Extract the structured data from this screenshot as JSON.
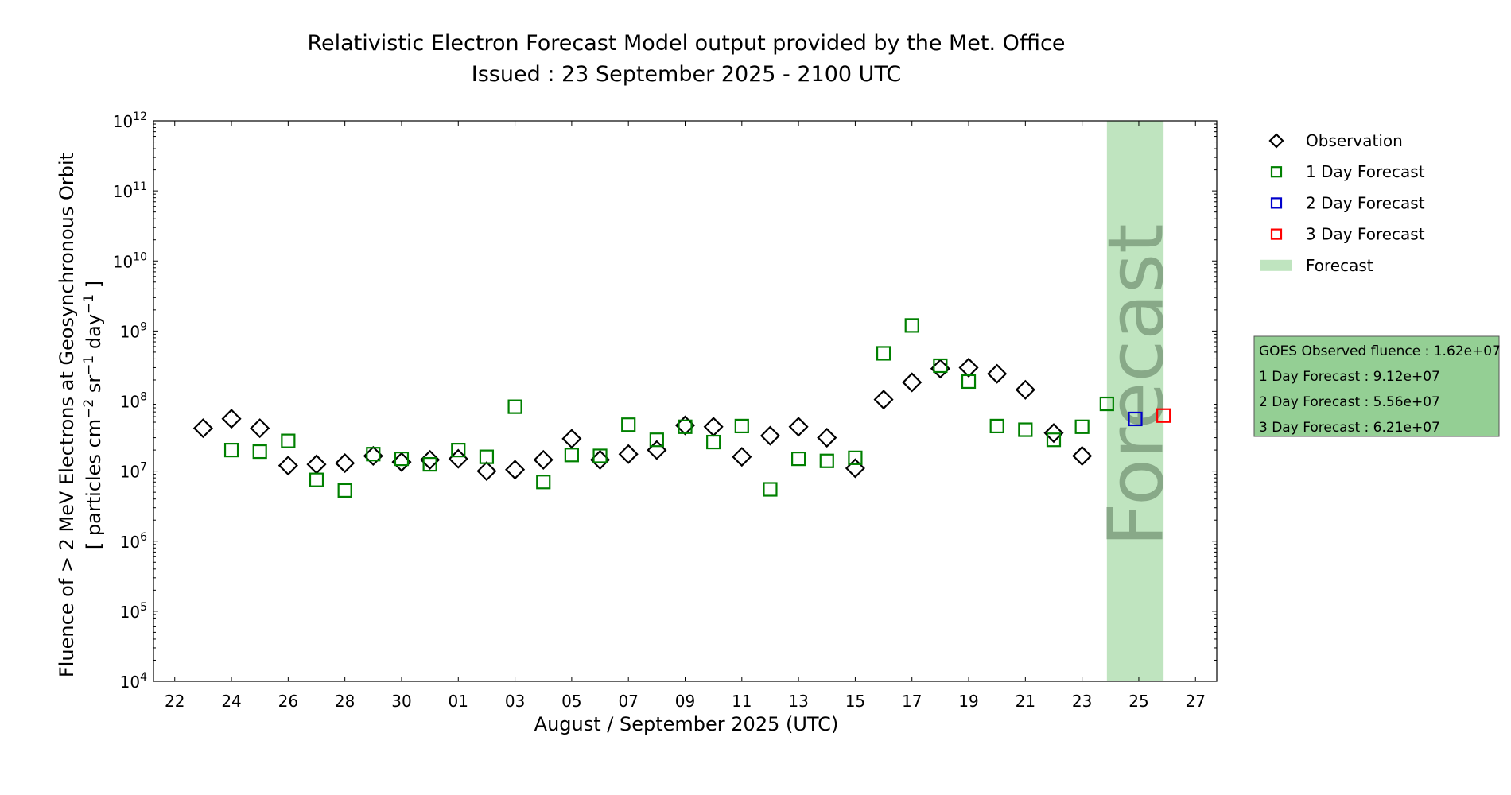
{
  "chart_data": {
    "type": "scatter",
    "title": "Relativistic Electron Forecast Model output provided by the Met. Office",
    "subtitle": "Issued : 23 September 2025 - 2100 UTC",
    "xlabel": "August / September 2025 (UTC)",
    "ylabel_line1": "Fluence of > 2 MeV Electrons at Geosynchronous Orbit",
    "ylabel_line2_parts": [
      "[ particles cm",
      "−2",
      " sr",
      "−1",
      " day",
      "−1",
      " ]"
    ],
    "y_scale": "log",
    "ylim": [
      10000,
      1000000000000
    ],
    "y_ticks": [
      {
        "value": 10000,
        "base": "10",
        "exp": "4"
      },
      {
        "value": 100000,
        "base": "10",
        "exp": "5"
      },
      {
        "value": 1000000,
        "base": "10",
        "exp": "6"
      },
      {
        "value": 10000000,
        "base": "10",
        "exp": "7"
      },
      {
        "value": 100000000,
        "base": "10",
        "exp": "8"
      },
      {
        "value": 1000000000,
        "base": "10",
        "exp": "9"
      },
      {
        "value": 10000000000,
        "base": "10",
        "exp": "10"
      },
      {
        "value": 100000000000,
        "base": "10",
        "exp": "11"
      },
      {
        "value": 1000000000000,
        "base": "10",
        "exp": "12"
      }
    ],
    "xlim": [
      "2025-08-21T06:00",
      "2025-09-27T18:00"
    ],
    "x_ticks": [
      {
        "date": "2025-08-22",
        "label": "22"
      },
      {
        "date": "2025-08-24",
        "label": "24"
      },
      {
        "date": "2025-08-26",
        "label": "26"
      },
      {
        "date": "2025-08-28",
        "label": "28"
      },
      {
        "date": "2025-08-30",
        "label": "30"
      },
      {
        "date": "2025-09-01",
        "label": "01"
      },
      {
        "date": "2025-09-03",
        "label": "03"
      },
      {
        "date": "2025-09-05",
        "label": "05"
      },
      {
        "date": "2025-09-07",
        "label": "07"
      },
      {
        "date": "2025-09-09",
        "label": "09"
      },
      {
        "date": "2025-09-11",
        "label": "11"
      },
      {
        "date": "2025-09-13",
        "label": "13"
      },
      {
        "date": "2025-09-15",
        "label": "15"
      },
      {
        "date": "2025-09-17",
        "label": "17"
      },
      {
        "date": "2025-09-19",
        "label": "19"
      },
      {
        "date": "2025-09-21",
        "label": "21"
      },
      {
        "date": "2025-09-23",
        "label": "23"
      },
      {
        "date": "2025-09-25",
        "label": "25"
      },
      {
        "date": "2025-09-27",
        "label": "27"
      }
    ],
    "forecast_region": {
      "start": "2025-09-23T21:00",
      "end": "2025-09-25T21:00",
      "color": "#bfe4bf",
      "label": "Forecast"
    },
    "series": [
      {
        "name": "Observation",
        "marker": "diamond",
        "color": "#000000",
        "points": [
          {
            "x": "2025-08-23",
            "y": 41000000
          },
          {
            "x": "2025-08-24",
            "y": 56000000
          },
          {
            "x": "2025-08-25",
            "y": 41000000
          },
          {
            "x": "2025-08-26",
            "y": 12000000
          },
          {
            "x": "2025-08-27",
            "y": 12500000
          },
          {
            "x": "2025-08-28",
            "y": 13000000
          },
          {
            "x": "2025-08-29",
            "y": 16500000
          },
          {
            "x": "2025-08-30",
            "y": 13500000
          },
          {
            "x": "2025-08-31",
            "y": 14500000
          },
          {
            "x": "2025-09-01",
            "y": 15000000
          },
          {
            "x": "2025-09-02",
            "y": 10000000
          },
          {
            "x": "2025-09-03",
            "y": 10500000
          },
          {
            "x": "2025-09-04",
            "y": 14500000
          },
          {
            "x": "2025-09-05",
            "y": 29000000
          },
          {
            "x": "2025-09-06",
            "y": 14500000
          },
          {
            "x": "2025-09-07",
            "y": 17500000
          },
          {
            "x": "2025-09-08",
            "y": 20000000
          },
          {
            "x": "2025-09-09",
            "y": 45000000
          },
          {
            "x": "2025-09-10",
            "y": 43000000
          },
          {
            "x": "2025-09-11",
            "y": 16000000
          },
          {
            "x": "2025-09-12",
            "y": 32000000
          },
          {
            "x": "2025-09-13",
            "y": 43000000
          },
          {
            "x": "2025-09-14",
            "y": 30000000
          },
          {
            "x": "2025-09-15",
            "y": 11000000
          },
          {
            "x": "2025-09-16",
            "y": 105000000
          },
          {
            "x": "2025-09-17",
            "y": 185000000
          },
          {
            "x": "2025-09-18",
            "y": 290000000
          },
          {
            "x": "2025-09-19",
            "y": 300000000
          },
          {
            "x": "2025-09-20",
            "y": 245000000
          },
          {
            "x": "2025-09-21",
            "y": 145000000
          },
          {
            "x": "2025-09-22",
            "y": 35000000
          },
          {
            "x": "2025-09-23",
            "y": 16500000
          }
        ]
      },
      {
        "name": "1 Day Forecast",
        "marker": "square",
        "color": "#008000",
        "points": [
          {
            "x": "2025-08-24",
            "y": 20000000
          },
          {
            "x": "2025-08-25",
            "y": 19000000
          },
          {
            "x": "2025-08-26",
            "y": 27000000
          },
          {
            "x": "2025-08-27",
            "y": 7500000
          },
          {
            "x": "2025-08-28",
            "y": 5300000
          },
          {
            "x": "2025-08-29",
            "y": 17500000
          },
          {
            "x": "2025-08-30",
            "y": 15000000
          },
          {
            "x": "2025-08-31",
            "y": 12500000
          },
          {
            "x": "2025-09-01",
            "y": 20000000
          },
          {
            "x": "2025-09-02",
            "y": 16000000
          },
          {
            "x": "2025-09-03",
            "y": 83000000
          },
          {
            "x": "2025-09-04",
            "y": 7000000
          },
          {
            "x": "2025-09-05",
            "y": 17000000
          },
          {
            "x": "2025-09-06",
            "y": 16500000
          },
          {
            "x": "2025-09-07",
            "y": 46000000
          },
          {
            "x": "2025-09-08",
            "y": 28000000
          },
          {
            "x": "2025-09-09",
            "y": 43000000
          },
          {
            "x": "2025-09-10",
            "y": 26000000
          },
          {
            "x": "2025-09-11",
            "y": 44000000
          },
          {
            "x": "2025-09-12",
            "y": 5500000
          },
          {
            "x": "2025-09-13",
            "y": 15000000
          },
          {
            "x": "2025-09-14",
            "y": 14000000
          },
          {
            "x": "2025-09-15",
            "y": 15500000
          },
          {
            "x": "2025-09-16",
            "y": 480000000
          },
          {
            "x": "2025-09-17",
            "y": 1200000000
          },
          {
            "x": "2025-09-18",
            "y": 320000000
          },
          {
            "x": "2025-09-19",
            "y": 190000000
          },
          {
            "x": "2025-09-20",
            "y": 44000000
          },
          {
            "x": "2025-09-21",
            "y": 39000000
          },
          {
            "x": "2025-09-22",
            "y": 28000000
          },
          {
            "x": "2025-09-23",
            "y": 43000000
          },
          {
            "x": "2025-09-23T21:00",
            "y": 91200000
          }
        ]
      },
      {
        "name": "2 Day Forecast",
        "marker": "square",
        "color": "#0000cc",
        "points": [
          {
            "x": "2025-09-24T21:00",
            "y": 55600000
          }
        ]
      },
      {
        "name": "3 Day Forecast",
        "marker": "square",
        "color": "#ff0000",
        "points": [
          {
            "x": "2025-09-25T21:00",
            "y": 62100000
          }
        ]
      }
    ],
    "legend": {
      "placement": "outside-right",
      "entries": [
        {
          "label": "Observation",
          "marker": "diamond",
          "color": "#000000"
        },
        {
          "label": "1 Day Forecast",
          "marker": "square",
          "color": "#008000"
        },
        {
          "label": "2 Day Forecast",
          "marker": "square",
          "color": "#0000cc"
        },
        {
          "label": "3 Day Forecast",
          "marker": "square",
          "color": "#ff0000"
        },
        {
          "label": "Forecast",
          "marker": "patch",
          "color": "#bfe4bf"
        }
      ]
    },
    "info_box": {
      "background": "#94cf94",
      "lines": [
        "GOES Observed fluence : 1.62e+07",
        "1 Day Forecast : 9.12e+07",
        "2 Day Forecast : 5.56e+07",
        "3 Day Forecast : 6.21e+07"
      ]
    }
  }
}
